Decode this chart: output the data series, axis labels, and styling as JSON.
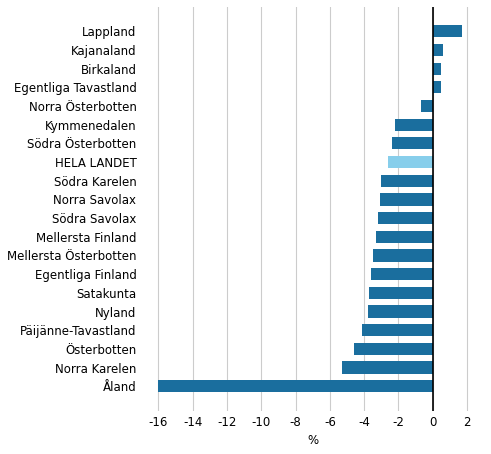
{
  "categories": [
    "Lappland",
    "Kajanaland",
    "Birkaland",
    "Egentliga Tavastland",
    "Norra Österbotten",
    "Kymmenedalen",
    "Södra Österbotten",
    "HELA LANDET",
    "Södra Karelen",
    "Norra Savolax",
    "Södra Savolax",
    "Mellersta Finland",
    "Mellersta Österbotten",
    "Egentliga Finland",
    "Satakunta",
    "Nyland",
    "Päijänne-Tavastland",
    "Österbotten",
    "Norra Karelen",
    "Åland"
  ],
  "values": [
    1.7,
    0.6,
    0.5,
    0.5,
    -0.7,
    -2.2,
    -2.4,
    -2.6,
    -3.0,
    -3.1,
    -3.2,
    -3.3,
    -3.5,
    -3.6,
    -3.7,
    -3.8,
    -4.1,
    -4.6,
    -5.3,
    -16.0
  ],
  "bar_color_default": "#1a6e9e",
  "bar_color_hela": "#87ceeb",
  "xlabel": "%",
  "xlim": [
    -17,
    3
  ],
  "xticks": [
    -16,
    -14,
    -12,
    -10,
    -8,
    -6,
    -4,
    -2,
    0,
    2
  ],
  "grid_color": "#cccccc",
  "background_color": "#ffffff",
  "label_fontsize": 8.5,
  "tick_fontsize": 8.5
}
